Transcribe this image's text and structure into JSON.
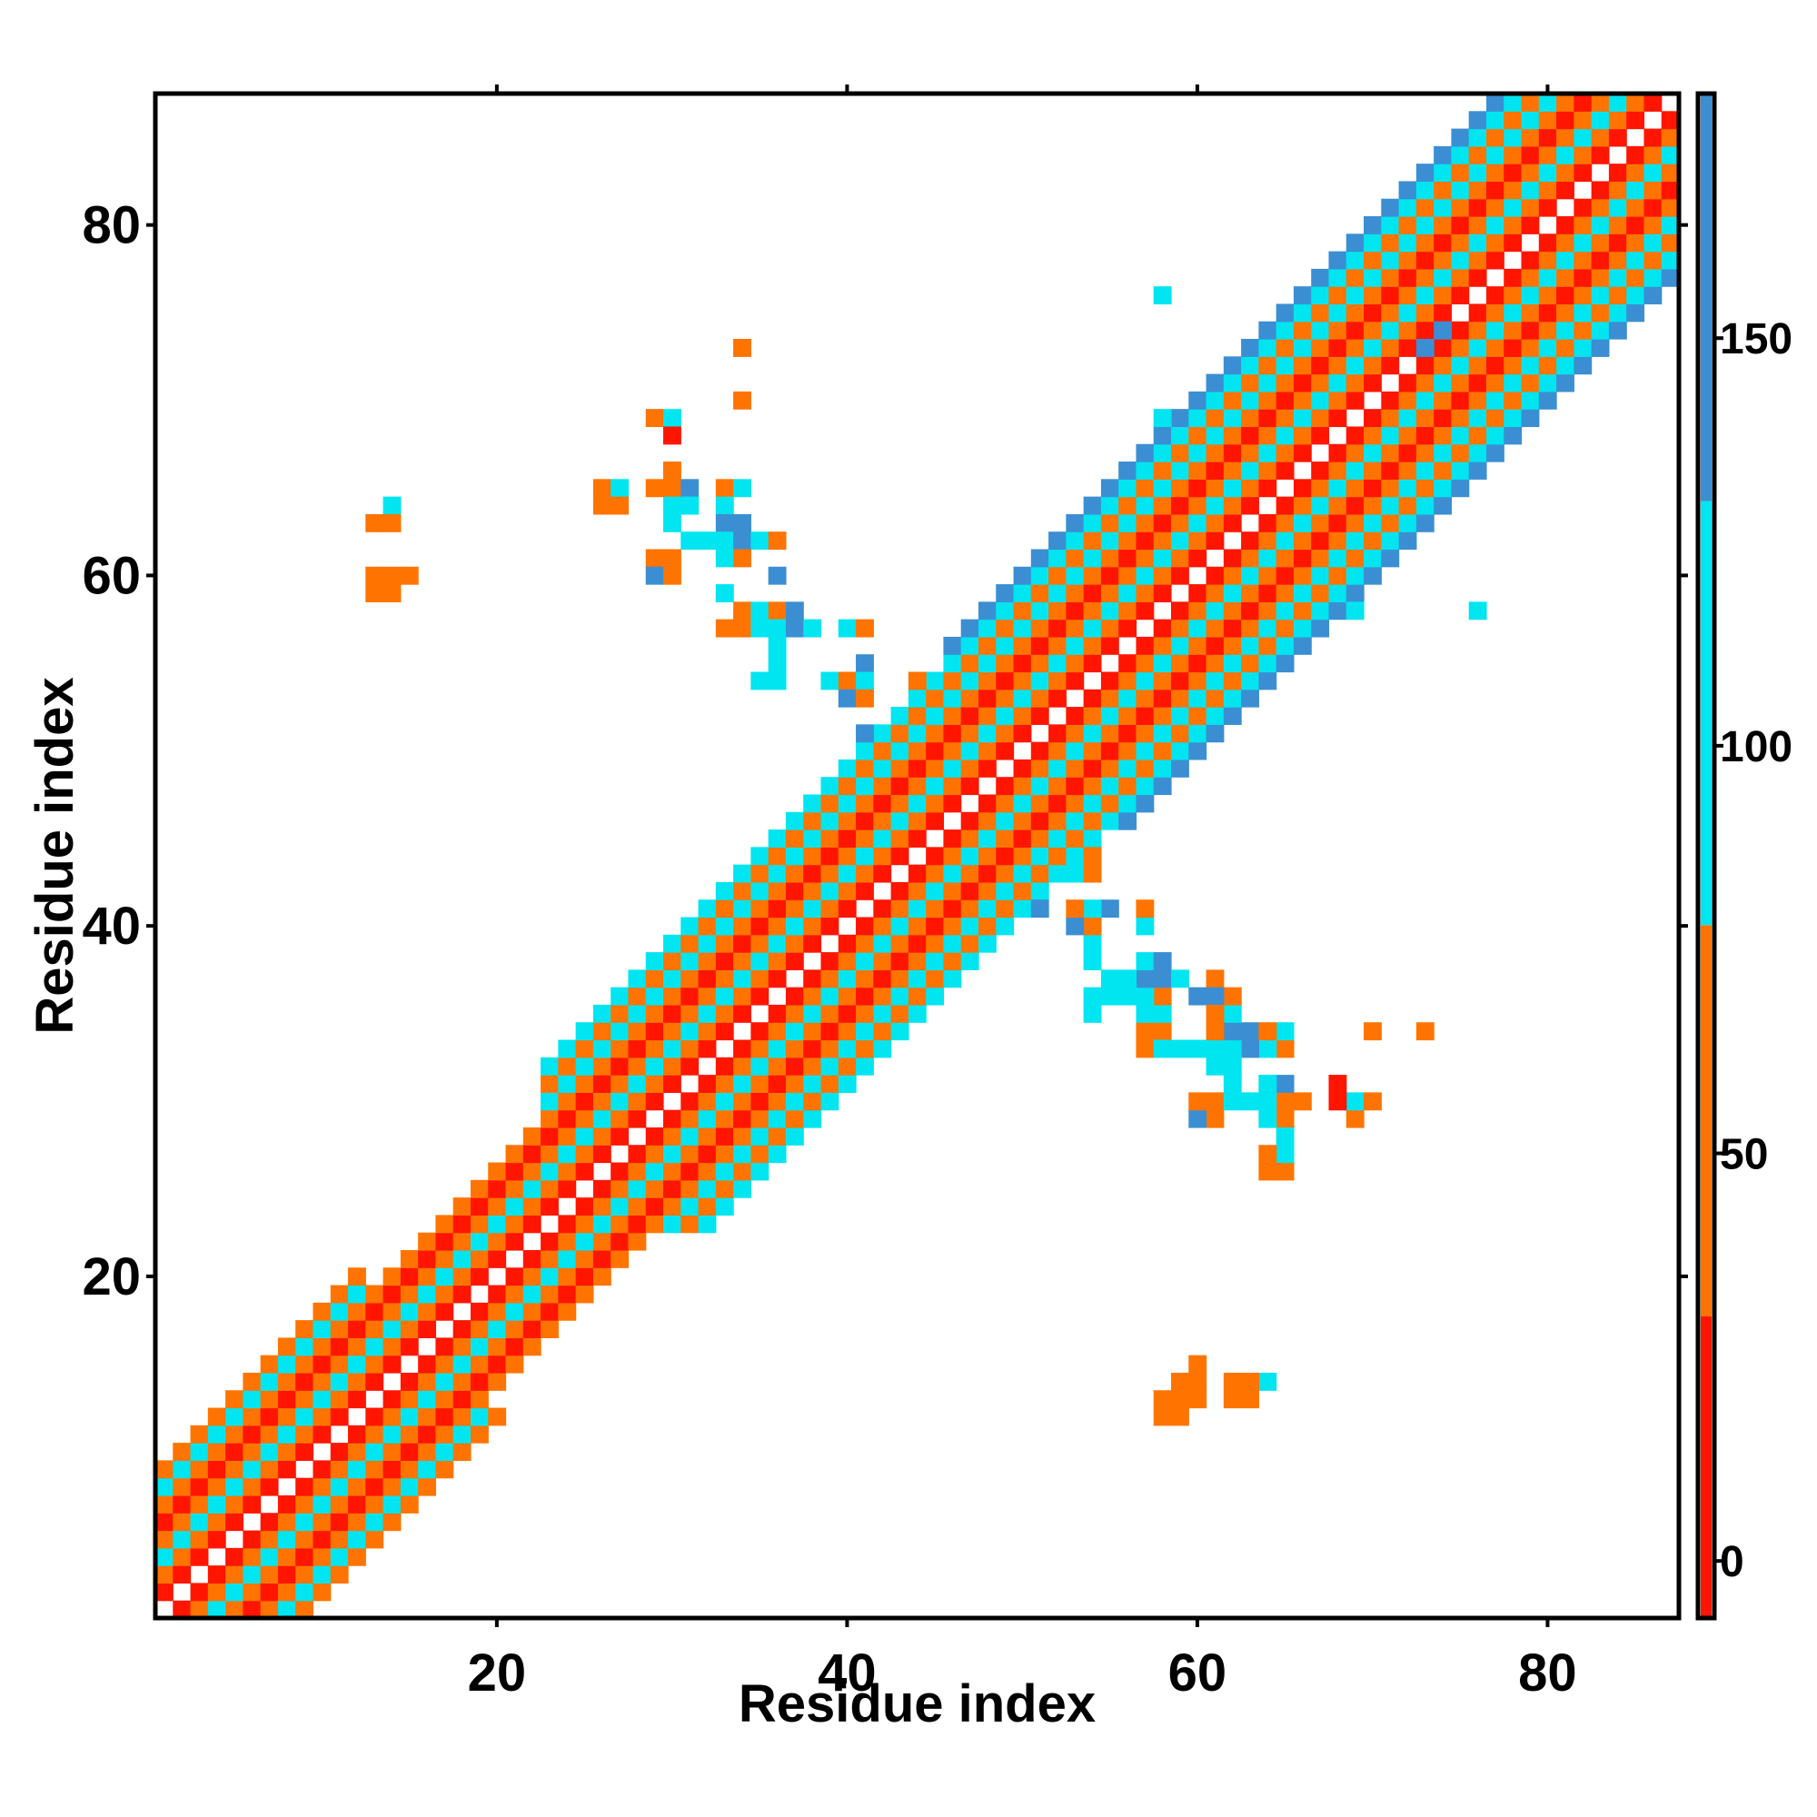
{
  "chart_data": {
    "type": "heatmap",
    "title": "",
    "xlabel": "Residue index",
    "ylabel": "Residue index",
    "xlim": [
      1,
      87
    ],
    "ylim": [
      1,
      87
    ],
    "x_ticks": [
      20,
      40,
      60,
      80
    ],
    "y_ticks": [
      20,
      40,
      60,
      80
    ],
    "colorbar": {
      "ticks": [
        0,
        50,
        100,
        150
      ],
      "range": [
        -7,
        180
      ],
      "bands": [
        {
          "from": -7,
          "to": 30,
          "color": "#ff1500"
        },
        {
          "from": 30,
          "to": 78,
          "color": "#ff7400"
        },
        {
          "from": 78,
          "to": 130,
          "color": "#00e5f0"
        },
        {
          "from": 130,
          "to": 180,
          "color": "#3c8ed2"
        }
      ]
    },
    "grid": false,
    "symmetric": true,
    "diagonal_band": {
      "description": "contacts along the main diagonal",
      "segments": [
        {
          "from": 1,
          "to": 12,
          "offsets": {
            "1": 22,
            "2": 62,
            "3": 100,
            "4": 55,
            "5": 18,
            "6": 60,
            "7": 106,
            "8": 38
          }
        },
        {
          "from": 12,
          "to": 23,
          "offsets": {
            "1": 25,
            "2": 58,
            "3": 95,
            "4": 48,
            "5": 15,
            "6": 64
          }
        },
        {
          "from": 23,
          "to": 46,
          "offsets": {
            "1": 20,
            "2": 56,
            "3": 104,
            "4": 52,
            "5": 14,
            "6": 60,
            "7": 108,
            "8": 46,
            "9": 112
          }
        },
        {
          "from": 46,
          "to": 87,
          "offsets": {
            "1": 18,
            "2": 55,
            "3": 108,
            "4": 50,
            "5": 12,
            "6": 62,
            "7": 114,
            "8": 44,
            "9": 120,
            "10": 150
          }
        }
      ]
    },
    "off_diagonal_cells": [
      [
        29,
        69,
        50
      ],
      [
        30,
        69,
        110
      ],
      [
        30,
        68,
        20
      ],
      [
        34,
        73,
        62
      ],
      [
        34,
        70,
        55
      ],
      [
        26,
        65,
        55
      ],
      [
        27,
        65,
        110
      ],
      [
        26,
        64,
        62
      ],
      [
        27,
        64,
        62
      ],
      [
        29,
        65,
        55
      ],
      [
        30,
        65,
        62
      ],
      [
        30,
        66,
        62
      ],
      [
        31,
        65,
        140
      ],
      [
        33,
        65,
        62
      ],
      [
        34,
        65,
        110
      ],
      [
        30,
        64,
        110
      ],
      [
        31,
        64,
        110
      ],
      [
        33,
        64,
        110
      ],
      [
        30,
        63,
        110
      ],
      [
        33,
        63,
        140
      ],
      [
        34,
        63,
        140
      ],
      [
        29,
        61,
        62
      ],
      [
        30,
        61,
        62
      ],
      [
        31,
        62,
        110
      ],
      [
        32,
        62,
        110
      ],
      [
        33,
        62,
        110
      ],
      [
        34,
        62,
        140
      ],
      [
        35,
        62,
        110
      ],
      [
        36,
        62,
        62
      ],
      [
        29,
        60,
        140
      ],
      [
        30,
        60,
        62
      ],
      [
        33,
        61,
        110
      ],
      [
        34,
        61,
        62
      ],
      [
        36,
        60,
        140
      ],
      [
        33,
        59,
        110
      ],
      [
        34,
        58,
        62
      ],
      [
        35,
        58,
        110
      ],
      [
        36,
        58,
        62
      ],
      [
        37,
        58,
        140
      ],
      [
        33,
        57,
        62
      ],
      [
        34,
        57,
        62
      ],
      [
        35,
        57,
        110
      ],
      [
        36,
        57,
        110
      ],
      [
        37,
        57,
        140
      ],
      [
        38,
        57,
        110
      ],
      [
        40,
        57,
        110
      ],
      [
        41,
        57,
        55
      ],
      [
        36,
        56,
        110
      ],
      [
        36,
        55,
        110
      ],
      [
        41,
        55,
        140
      ],
      [
        35,
        54,
        110
      ],
      [
        36,
        54,
        110
      ],
      [
        39,
        54,
        110
      ],
      [
        40,
        54,
        62
      ],
      [
        41,
        54,
        110
      ],
      [
        44,
        54,
        62
      ],
      [
        40,
        53,
        140
      ],
      [
        41,
        53,
        62
      ],
      [
        44,
        53,
        110
      ],
      [
        41,
        51,
        140
      ],
      [
        41,
        49,
        140
      ],
      [
        14,
        64,
        110
      ],
      [
        13,
        63,
        62
      ],
      [
        14,
        63,
        62
      ],
      [
        13,
        60,
        62
      ],
      [
        14,
        60,
        62
      ],
      [
        15,
        60,
        55
      ],
      [
        13,
        59,
        62
      ],
      [
        14,
        59,
        62
      ],
      [
        58,
        76,
        110
      ],
      [
        61,
        69,
        110
      ],
      [
        62,
        69,
        110
      ],
      [
        58,
        69,
        110
      ],
      [
        69,
        62,
        110
      ],
      [
        69,
        61,
        110
      ],
      [
        69,
        58,
        110
      ],
      [
        73,
        74,
        140
      ],
      [
        74,
        74,
        140
      ],
      [
        73,
        73,
        140
      ],
      [
        75,
        77,
        140
      ],
      [
        76,
        77,
        140
      ],
      [
        77,
        76,
        110
      ],
      [
        79,
        77,
        140
      ],
      [
        80,
        77,
        140
      ],
      [
        81,
        77,
        110
      ],
      [
        82,
        76,
        62
      ],
      [
        83,
        76,
        62
      ],
      [
        80,
        73,
        110
      ],
      [
        81,
        73,
        110
      ]
    ],
    "reflected_only_cells": [
      [
        49,
        43,
        110
      ],
      [
        50,
        43,
        110
      ],
      [
        53,
        43,
        110
      ],
      [
        54,
        43,
        55
      ],
      [
        49,
        41,
        140
      ],
      [
        51,
        41,
        140
      ],
      [
        53,
        41,
        110
      ],
      [
        54,
        41,
        140
      ],
      [
        55,
        41,
        140
      ],
      [
        57,
        41,
        62
      ],
      [
        53,
        40,
        140
      ],
      [
        54,
        39,
        110
      ],
      [
        57,
        40,
        110
      ],
      [
        54,
        38,
        110
      ],
      [
        55,
        37,
        110
      ],
      [
        56,
        37,
        110
      ],
      [
        57,
        38,
        62
      ],
      [
        58,
        38,
        140
      ],
      [
        59,
        37,
        110
      ],
      [
        61,
        37,
        62
      ],
      [
        57,
        36,
        140
      ],
      [
        61,
        36,
        140
      ],
      [
        57,
        35,
        110
      ],
      [
        61,
        35,
        62
      ],
      [
        62,
        34,
        140
      ],
      [
        64,
        34,
        62
      ],
      [
        65,
        34,
        110
      ],
      [
        57,
        33,
        62
      ],
      [
        58,
        33,
        110
      ],
      [
        60,
        33,
        110
      ],
      [
        61,
        33,
        62
      ],
      [
        63,
        33,
        140
      ],
      [
        64,
        33,
        55
      ],
      [
        65,
        33,
        62
      ],
      [
        61,
        32,
        110
      ],
      [
        64,
        31,
        110
      ],
      [
        65,
        31,
        140
      ],
      [
        60,
        30,
        62
      ],
      [
        61,
        30,
        62
      ],
      [
        62,
        30,
        110
      ],
      [
        63,
        30,
        110
      ],
      [
        64,
        30,
        62
      ],
      [
        65,
        30,
        62
      ],
      [
        66,
        30,
        62
      ],
      [
        60,
        29,
        140
      ],
      [
        61,
        29,
        62
      ],
      [
        64,
        29,
        110
      ],
      [
        65,
        28,
        110
      ],
      [
        64,
        27,
        55
      ],
      [
        65,
        27,
        62
      ],
      [
        64,
        26,
        55
      ],
      [
        68,
        31,
        20
      ],
      [
        69,
        30,
        110
      ],
      [
        70,
        30,
        62
      ],
      [
        70,
        34,
        62
      ],
      [
        73,
        34,
        55
      ],
      [
        59,
        14,
        55
      ],
      [
        58,
        13,
        62
      ],
      [
        59,
        13,
        62
      ],
      [
        58,
        12,
        62
      ],
      [
        59,
        12,
        62
      ],
      [
        62,
        14,
        62
      ],
      [
        63,
        14,
        110
      ],
      [
        62,
        13,
        62
      ]
    ]
  }
}
